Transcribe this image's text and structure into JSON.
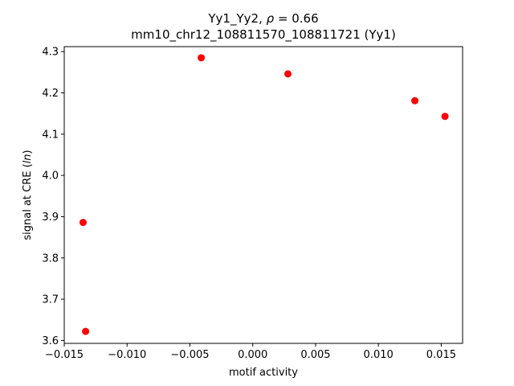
{
  "chart_data": {
    "type": "scatter",
    "title_line1_prefix": "Yy1_Yy2, ",
    "title_rho_symbol": "ρ",
    "title_rho_value": " = 0.66",
    "title_line2": "mm10_chr12_108811570_108811721 (Yy1)",
    "xlabel": "motif activity",
    "ylabel_prefix": "signal at CRE (",
    "ylabel_italic": "ln",
    "ylabel_suffix": ")",
    "xlim": [
      -0.015,
      0.0167
    ],
    "ylim": [
      3.593,
      4.312
    ],
    "x_ticks": [
      {
        "value": -0.015,
        "label": "−0.015"
      },
      {
        "value": -0.01,
        "label": "−0.010"
      },
      {
        "value": -0.005,
        "label": "−0.005"
      },
      {
        "value": 0.0,
        "label": "0.000"
      },
      {
        "value": 0.005,
        "label": "0.005"
      },
      {
        "value": 0.01,
        "label": "0.010"
      },
      {
        "value": 0.015,
        "label": "0.015"
      }
    ],
    "y_ticks": [
      {
        "value": 3.6,
        "label": "3.6"
      },
      {
        "value": 3.7,
        "label": "3.7"
      },
      {
        "value": 3.8,
        "label": "3.8"
      },
      {
        "value": 3.9,
        "label": "3.9"
      },
      {
        "value": 4.0,
        "label": "4.0"
      },
      {
        "value": 4.1,
        "label": "4.1"
      },
      {
        "value": 4.2,
        "label": "4.2"
      },
      {
        "value": 4.3,
        "label": "4.3"
      }
    ],
    "grid": false,
    "marker_color": "#ff0000",
    "points": [
      {
        "x": -0.0135,
        "y": 3.886
      },
      {
        "x": -0.0133,
        "y": 3.622
      },
      {
        "x": -0.0041,
        "y": 4.285
      },
      {
        "x": 0.0028,
        "y": 4.246
      },
      {
        "x": 0.0129,
        "y": 4.181
      },
      {
        "x": 0.0153,
        "y": 4.143
      }
    ]
  }
}
